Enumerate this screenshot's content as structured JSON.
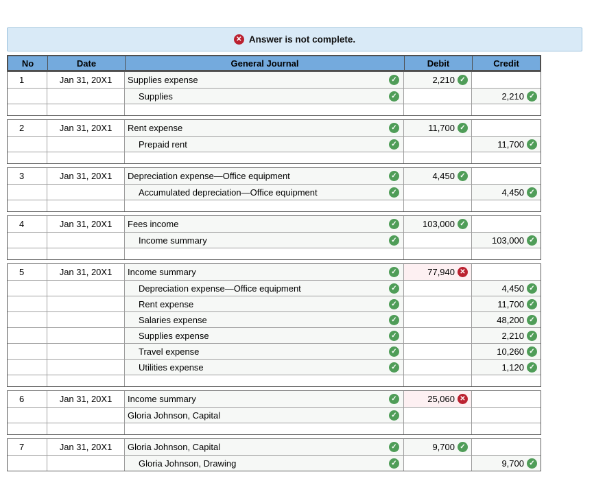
{
  "banner": {
    "text": "Answer is not complete."
  },
  "icons": {
    "check": "✓",
    "error": "✕"
  },
  "colors": {
    "header_bg": "#74aadd",
    "banner_bg": "#d9eaf7",
    "banner_border": "#9cc2dd",
    "ok": "#4f9d58",
    "err": "#bb2130",
    "ok_cell_bg": "#f6f8f6",
    "err_cell_bg": "#fdf0f2"
  },
  "table": {
    "columns": {
      "no": "No",
      "date": "Date",
      "journal": "General Journal",
      "debit": "Debit",
      "credit": "Credit"
    },
    "entries": [
      {
        "no": "1",
        "date": "Jan 31, 20X1",
        "trailing_blank": true,
        "lines": [
          {
            "account": "Supplies expense",
            "indent": false,
            "acct_status": "ok",
            "debit": "2,210",
            "debit_status": "ok",
            "credit": "",
            "credit_status": null
          },
          {
            "account": "Supplies",
            "indent": true,
            "acct_status": "ok",
            "debit": "",
            "debit_status": null,
            "credit": "2,210",
            "credit_status": "ok"
          }
        ]
      },
      {
        "no": "2",
        "date": "Jan 31, 20X1",
        "trailing_blank": true,
        "lines": [
          {
            "account": "Rent expense",
            "indent": false,
            "acct_status": "ok",
            "debit": "11,700",
            "debit_status": "ok",
            "credit": "",
            "credit_status": null
          },
          {
            "account": "Prepaid rent",
            "indent": true,
            "acct_status": "ok",
            "debit": "",
            "debit_status": null,
            "credit": "11,700",
            "credit_status": "ok"
          }
        ]
      },
      {
        "no": "3",
        "date": "Jan 31, 20X1",
        "trailing_blank": true,
        "lines": [
          {
            "account": "Depreciation expense—Office equipment",
            "indent": false,
            "acct_status": "ok",
            "debit": "4,450",
            "debit_status": "ok",
            "credit": "",
            "credit_status": null
          },
          {
            "account": "Accumulated depreciation—Office equipment",
            "indent": true,
            "acct_status": "ok",
            "debit": "",
            "debit_status": null,
            "credit": "4,450",
            "credit_status": "ok"
          }
        ]
      },
      {
        "no": "4",
        "date": "Jan 31, 20X1",
        "trailing_blank": true,
        "lines": [
          {
            "account": "Fees income",
            "indent": false,
            "acct_status": "ok",
            "debit": "103,000",
            "debit_status": "ok",
            "credit": "",
            "credit_status": null
          },
          {
            "account": "Income summary",
            "indent": true,
            "acct_status": "ok",
            "debit": "",
            "debit_status": null,
            "credit": "103,000",
            "credit_status": "ok"
          }
        ]
      },
      {
        "no": "5",
        "date": "Jan 31, 20X1",
        "trailing_blank": true,
        "lines": [
          {
            "account": "Income summary",
            "indent": false,
            "acct_status": "ok",
            "debit": "77,940",
            "debit_status": "error",
            "credit": "",
            "credit_status": null
          },
          {
            "account": "Depreciation expense—Office equipment",
            "indent": true,
            "acct_status": "ok",
            "debit": "",
            "debit_status": null,
            "credit": "4,450",
            "credit_status": "ok"
          },
          {
            "account": "Rent expense",
            "indent": true,
            "acct_status": "ok",
            "debit": "",
            "debit_status": null,
            "credit": "11,700",
            "credit_status": "ok"
          },
          {
            "account": "Salaries expense",
            "indent": true,
            "acct_status": "ok",
            "debit": "",
            "debit_status": null,
            "credit": "48,200",
            "credit_status": "ok"
          },
          {
            "account": "Supplies expense",
            "indent": true,
            "acct_status": "ok",
            "debit": "",
            "debit_status": null,
            "credit": "2,210",
            "credit_status": "ok"
          },
          {
            "account": "Travel expense",
            "indent": true,
            "acct_status": "ok",
            "debit": "",
            "debit_status": null,
            "credit": "10,260",
            "credit_status": "ok"
          },
          {
            "account": "Utilities expense",
            "indent": true,
            "acct_status": "ok",
            "debit": "",
            "debit_status": null,
            "credit": "1,120",
            "credit_status": "ok"
          }
        ]
      },
      {
        "no": "6",
        "date": "Jan 31, 20X1",
        "trailing_blank": true,
        "lines": [
          {
            "account": "Income summary",
            "indent": false,
            "acct_status": "ok",
            "debit": "25,060",
            "debit_status": "error",
            "credit": "",
            "credit_status": null
          },
          {
            "account": "Gloria Johnson, Capital",
            "indent": false,
            "acct_status": "ok",
            "debit": "",
            "debit_status": null,
            "credit": "",
            "credit_status": null
          }
        ]
      },
      {
        "no": "7",
        "date": "Jan 31, 20X1",
        "trailing_blank": false,
        "lines": [
          {
            "account": "Gloria Johnson, Capital",
            "indent": false,
            "acct_status": "ok",
            "debit": "9,700",
            "debit_status": "ok",
            "credit": "",
            "credit_status": null
          },
          {
            "account": "Gloria Johnson, Drawing",
            "indent": true,
            "acct_status": "ok",
            "debit": "",
            "debit_status": null,
            "credit": "9,700",
            "credit_status": "ok"
          }
        ]
      }
    ]
  }
}
